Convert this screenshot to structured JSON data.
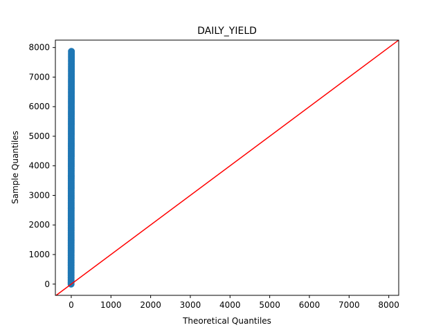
{
  "chart_data": {
    "type": "scatter",
    "title": "DAILY_YIELD",
    "xlabel": "Theoretical Quantiles",
    "ylabel": "Sample Quantiles",
    "xlim": [
      -400,
      8250
    ],
    "ylim": [
      -380,
      8250
    ],
    "x_ticks": [
      0,
      1000,
      2000,
      3000,
      4000,
      5000,
      6000,
      7000,
      8000
    ],
    "y_ticks": [
      0,
      1000,
      2000,
      3000,
      4000,
      5000,
      6000,
      7000,
      8000
    ],
    "grid": false,
    "series": [
      {
        "kind": "points",
        "color": "#1f77b4",
        "theoretical_quantile_range": [
          -4,
          4
        ],
        "sample_quantile_range": [
          0,
          7870
        ]
      },
      {
        "kind": "reference-line-45deg",
        "color": "#ff0000"
      }
    ]
  }
}
